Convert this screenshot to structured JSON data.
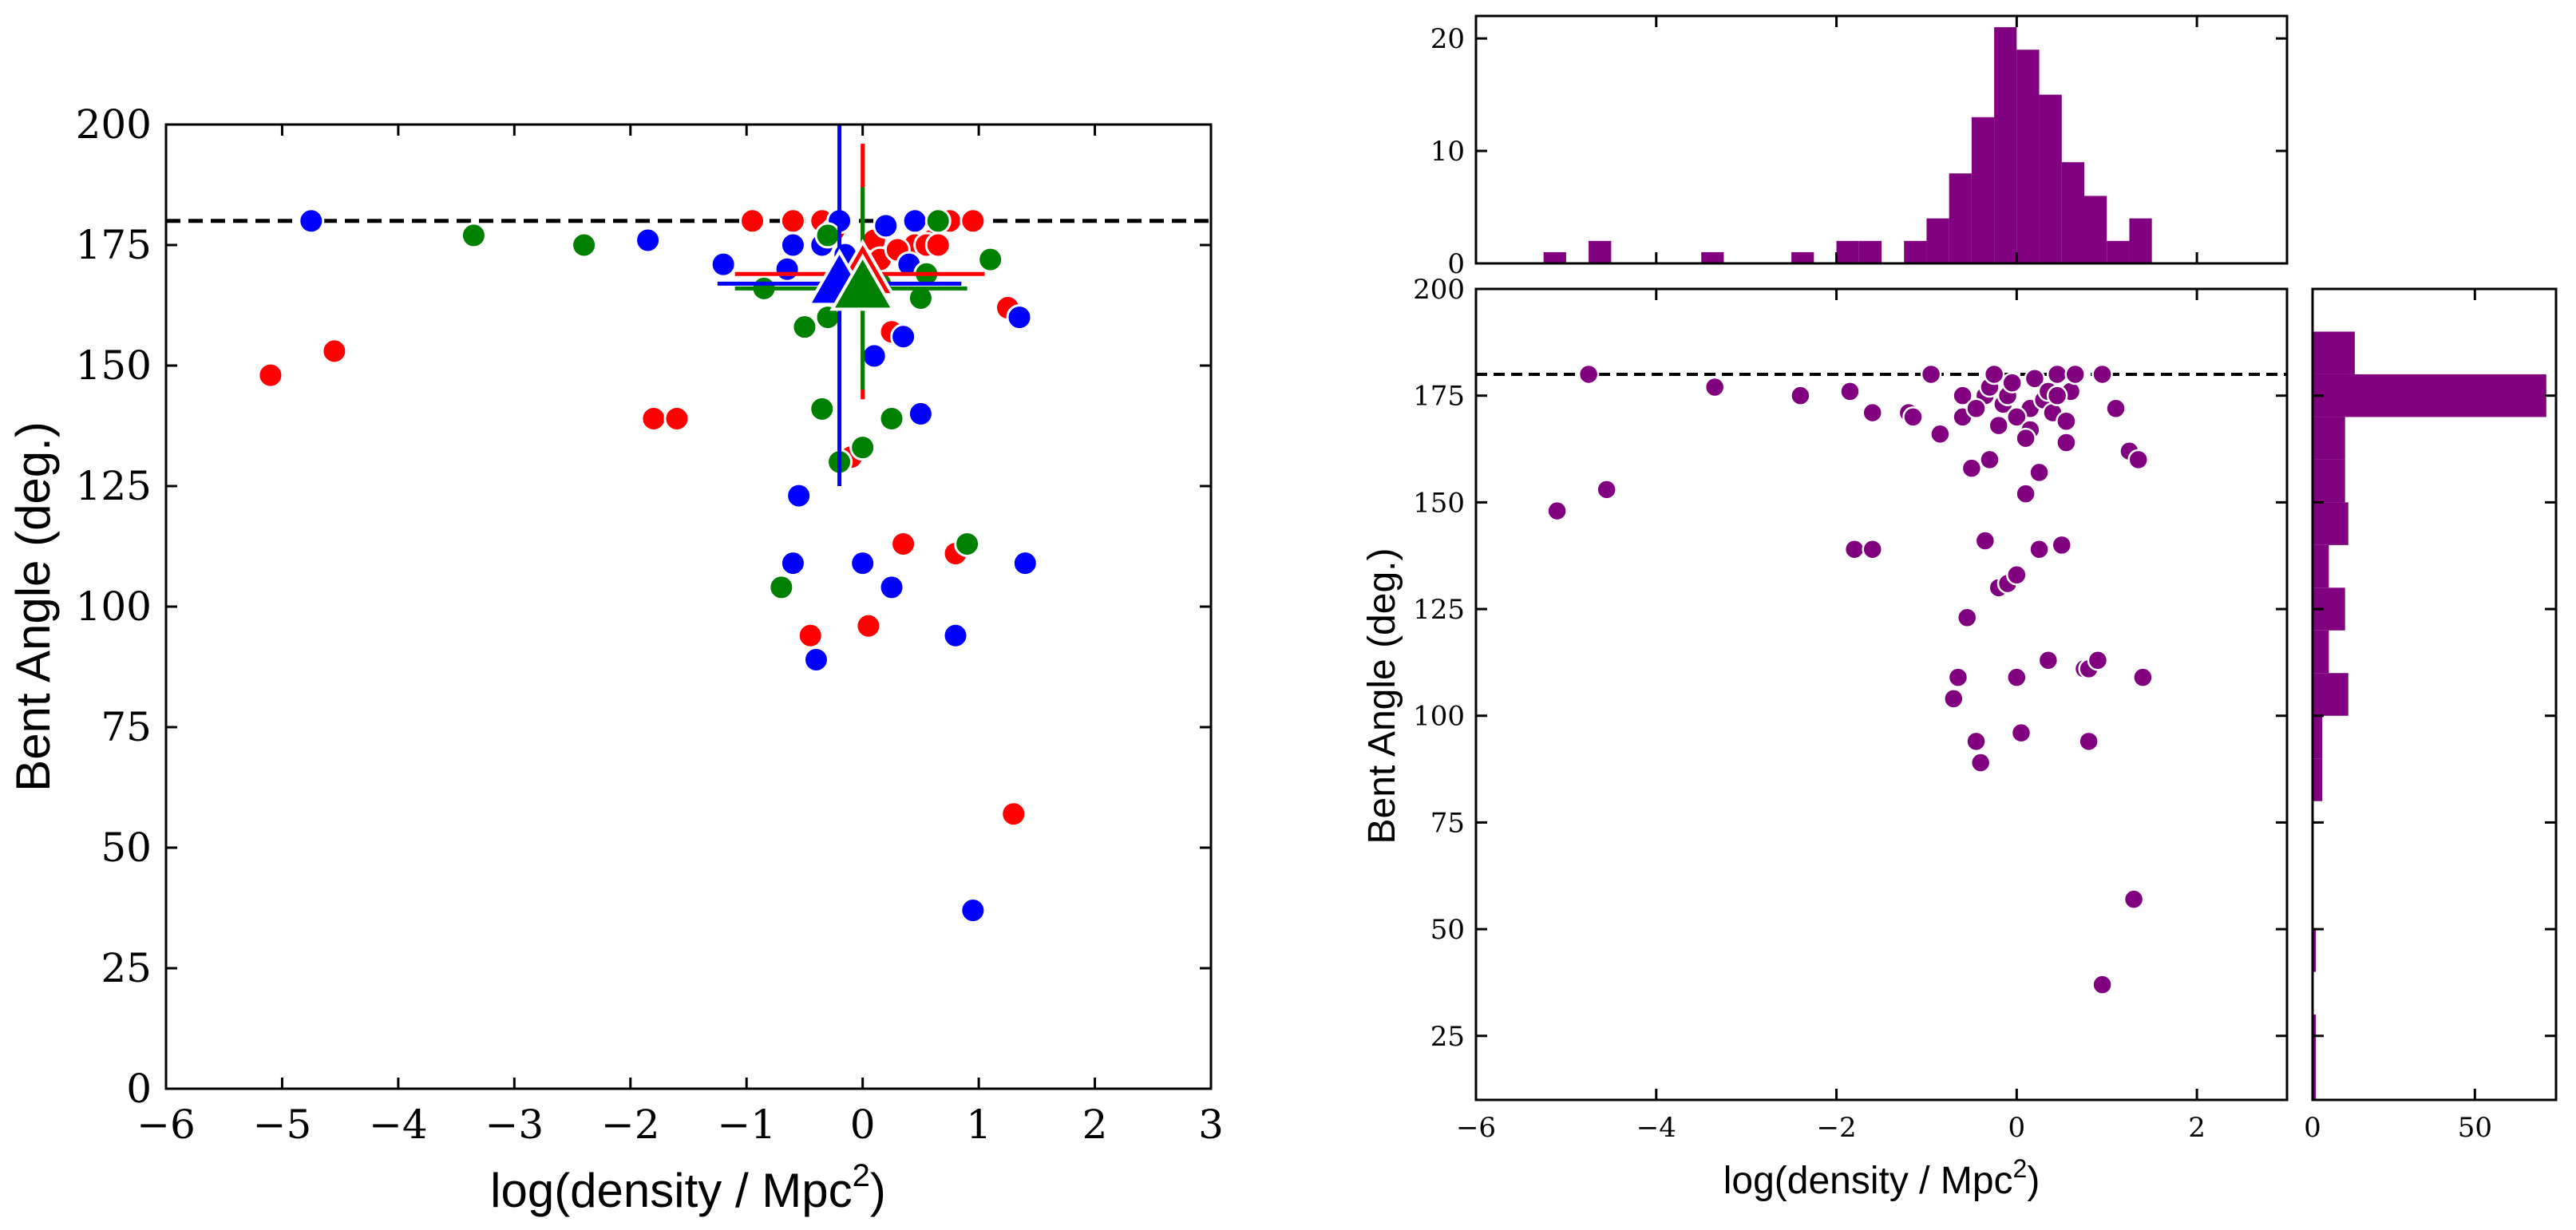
{
  "colors": {
    "red": "#ff0000",
    "blue": "#0000ff",
    "green": "#008000",
    "purple": "#800080",
    "black": "#000000"
  },
  "chart_data": [
    {
      "type": "scatter",
      "panel": "left",
      "xlabel_main": "log(density / Mpc",
      "xlabel_sup": "2",
      "xlabel_close": ")",
      "ylabel": "Bent Angle (deg.)",
      "xlim": [
        -6,
        3
      ],
      "ylim": [
        0,
        200
      ],
      "xticks": [
        -6,
        -5,
        -4,
        -3,
        -2,
        -1,
        0,
        1,
        2,
        3
      ],
      "xtick_labels": [
        "−6",
        "−5",
        "−4",
        "−3",
        "−2",
        "−1",
        "0",
        "1",
        "2",
        "3"
      ],
      "yticks": [
        0,
        25,
        50,
        75,
        100,
        125,
        150,
        175,
        200
      ],
      "ytick_labels": [
        "0",
        "25",
        "50",
        "75",
        "100",
        "125",
        "150",
        "175",
        "200"
      ],
      "reference_line": 180,
      "series": [
        {
          "name": "red",
          "x": [
            -5.1,
            -4.55,
            -1.8,
            -1.6,
            -0.95,
            -0.45,
            0.05,
            0.35,
            0.8,
            1.3,
            1.25,
            -0.1,
            0.25,
            0.45,
            0.6,
            0.75,
            0.95,
            -0.6,
            -0.35,
            0.1,
            0.55,
            -0.25,
            0.15,
            0.65,
            0.3,
            1.25
          ],
          "y": [
            148,
            153,
            139,
            139,
            180,
            94,
            96,
            113,
            111,
            57,
            162,
            131,
            157,
            175,
            176,
            180,
            180,
            180,
            180,
            176,
            175,
            178,
            172,
            175,
            174,
            162
          ]
        },
        {
          "name": "blue",
          "x": [
            -4.75,
            -1.85,
            -1.2,
            -0.65,
            -0.6,
            -0.55,
            -0.4,
            -0.35,
            0.0,
            0.1,
            0.25,
            0.35,
            0.4,
            0.5,
            0.8,
            0.95,
            1.35,
            1.4,
            -0.2,
            0.2,
            0.45,
            -0.6,
            -0.15
          ],
          "y": [
            180,
            176,
            171,
            170,
            109,
            123,
            89,
            175,
            109,
            152,
            104,
            156,
            171,
            140,
            94,
            37,
            160,
            109,
            180,
            179,
            180,
            175,
            173
          ]
        },
        {
          "name": "green",
          "x": [
            -3.35,
            -2.4,
            -0.85,
            -0.7,
            -0.5,
            -0.35,
            -0.3,
            -0.2,
            0.0,
            0.25,
            0.5,
            0.65,
            0.9,
            1.1,
            -0.3,
            0.55,
            0.15,
            0.0
          ],
          "y": [
            177,
            175,
            166,
            104,
            158,
            141,
            177,
            130,
            133,
            139,
            164,
            180,
            113,
            172,
            160,
            169,
            167,
            170
          ]
        }
      ],
      "means": [
        {
          "name": "red",
          "x": 0.0,
          "y": 169,
          "xerr_low": -1.1,
          "xerr_high": 1.05,
          "yerr_low": 143,
          "yerr_high": 196
        },
        {
          "name": "blue",
          "x": -0.2,
          "y": 167,
          "xerr_low": -1.25,
          "xerr_high": 0.85,
          "yerr_low": 125,
          "yerr_high": 200
        },
        {
          "name": "green",
          "x": 0.0,
          "y": 166,
          "xerr_low": -1.1,
          "xerr_high": 0.9,
          "yerr_low": 145,
          "yerr_high": 187
        }
      ]
    },
    {
      "type": "scatter",
      "panel": "right-main",
      "xlabel_main": "log(density / Mpc",
      "xlabel_sup": "2",
      "xlabel_close": ")",
      "ylabel": "Bent Angle (deg.)",
      "xlim": [
        -6,
        3
      ],
      "ylim": [
        10,
        200
      ],
      "xticks": [
        -6,
        -4,
        -2,
        0,
        2
      ],
      "xtick_labels": [
        "−6",
        "−4",
        "−2",
        "0",
        "2"
      ],
      "yticks": [
        25,
        50,
        75,
        100,
        125,
        150,
        175,
        200
      ],
      "ytick_labels": [
        "25",
        "50",
        "75",
        "100",
        "125",
        "150",
        "175",
        "200"
      ],
      "reference_line": 180,
      "series": [
        {
          "name": "all",
          "x": [
            -5.1,
            -4.75,
            -4.55,
            -3.35,
            -2.4,
            -1.85,
            -1.8,
            -1.6,
            -1.6,
            -1.2,
            -1.15,
            -0.95,
            -0.85,
            -0.7,
            -0.65,
            -0.6,
            -0.55,
            -0.5,
            -0.45,
            -0.4,
            -0.35,
            -0.35,
            -0.3,
            -0.25,
            -0.2,
            -0.15,
            -0.1,
            0.0,
            0.0,
            0.05,
            0.1,
            0.15,
            0.2,
            0.25,
            0.3,
            0.35,
            0.4,
            0.45,
            0.5,
            0.55,
            0.6,
            0.65,
            0.75,
            0.8,
            0.8,
            0.9,
            0.95,
            0.95,
            1.1,
            1.25,
            1.3,
            1.35,
            1.4,
            -0.3,
            0.0,
            -0.6,
            0.25,
            0.55,
            -0.1,
            0.35,
            -0.45,
            -0.05,
            0.15,
            0.45,
            -0.2,
            0.1
          ],
          "y": [
            148,
            180,
            153,
            177,
            175,
            176,
            139,
            139,
            171,
            171,
            170,
            180,
            166,
            104,
            109,
            175,
            123,
            158,
            94,
            89,
            141,
            175,
            177,
            180,
            130,
            173,
            131,
            109,
            133,
            96,
            152,
            172,
            179,
            139,
            174,
            113,
            171,
            180,
            140,
            169,
            176,
            180,
            111,
            94,
            111,
            113,
            37,
            180,
            172,
            162,
            57,
            160,
            109,
            160,
            170,
            170,
            157,
            164,
            175,
            176,
            172,
            178,
            167,
            175,
            168,
            165
          ]
        }
      ]
    },
    {
      "type": "bar",
      "panel": "top-histogram",
      "ylim": [
        0,
        22
      ],
      "yticks": [
        0,
        10,
        20
      ],
      "ytick_labels": [
        "0",
        "10",
        "20"
      ],
      "bin_edges": [
        -6,
        -5.75,
        -5.5,
        -5.25,
        -5,
        -4.75,
        -4.5,
        -4.25,
        -4,
        -3.75,
        -3.5,
        -3.25,
        -3,
        -2.75,
        -2.5,
        -2.25,
        -2,
        -1.75,
        -1.5,
        -1.25,
        -1,
        -0.75,
        -0.5,
        -0.25,
        0,
        0.25,
        0.5,
        0.75,
        1,
        1.25,
        1.5,
        1.75,
        2,
        2.25,
        2.5,
        2.75,
        3
      ],
      "counts": [
        0,
        0,
        0,
        1,
        0,
        2,
        0,
        0,
        0,
        0,
        1,
        0,
        0,
        0,
        1,
        0,
        2,
        2,
        0,
        2,
        4,
        8,
        13,
        21,
        19,
        15,
        9,
        6,
        2,
        4,
        0,
        0,
        0,
        0,
        0,
        0
      ]
    },
    {
      "type": "bar",
      "panel": "right-histogram",
      "orientation": "horizontal",
      "xlim": [
        0,
        75
      ],
      "xticks": [
        0,
        50
      ],
      "xtick_labels": [
        "0",
        "50"
      ],
      "bin_edges": [
        10,
        20,
        30,
        40,
        50,
        60,
        70,
        80,
        90,
        100,
        110,
        120,
        130,
        140,
        150,
        160,
        170,
        180,
        190,
        200
      ],
      "counts": [
        1,
        1,
        0,
        1,
        0,
        0,
        0,
        3,
        3,
        11,
        5,
        10,
        5,
        11,
        10,
        10,
        72,
        13,
        0
      ]
    }
  ]
}
